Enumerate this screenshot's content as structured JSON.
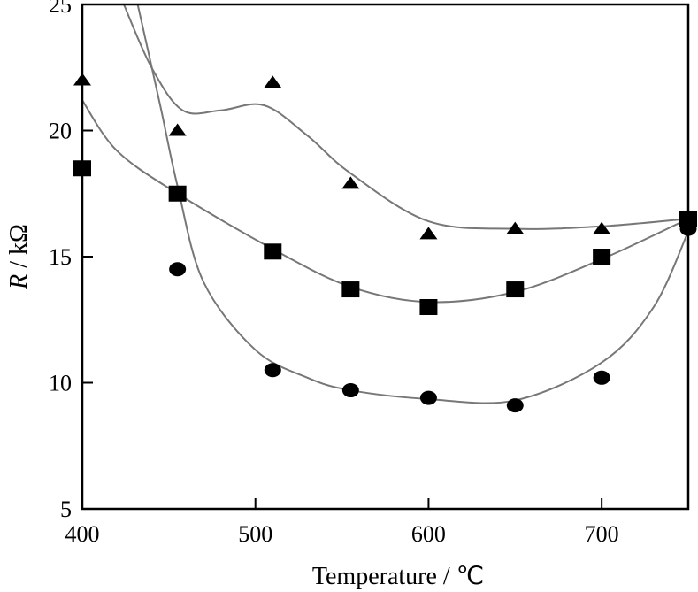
{
  "chart_data": {
    "type": "scatter",
    "title": "",
    "xlabel": "Temperature / ℃",
    "ylabel_italic": "R",
    "ylabel_rest": " / kΩ",
    "xlim": [
      400,
      750
    ],
    "ylim": [
      5,
      25
    ],
    "xticks": [
      400,
      500,
      600,
      700
    ],
    "yticks": [
      5,
      10,
      15,
      20,
      25
    ],
    "grid": false,
    "series": [
      {
        "name": "triangle",
        "marker": "triangle",
        "x": [
          400,
          455,
          510,
          555,
          600,
          650,
          700,
          750
        ],
        "y": [
          22.0,
          20.0,
          21.9,
          17.9,
          15.9,
          16.1,
          16.1,
          16.5
        ],
        "fit": {
          "x": [
            424,
            440,
            458,
            480,
            505,
            530,
            555,
            600,
            650,
            700,
            750
          ],
          "y": [
            25,
            22.5,
            20.8,
            20.8,
            21.0,
            19.8,
            18.3,
            16.4,
            16.1,
            16.2,
            16.5
          ]
        }
      },
      {
        "name": "square",
        "marker": "square",
        "x": [
          400,
          455,
          510,
          555,
          600,
          650,
          700,
          750
        ],
        "y": [
          18.5,
          17.5,
          15.2,
          13.7,
          13.0,
          13.7,
          15.0,
          16.5
        ],
        "fit": {
          "x": [
            400,
            420,
            455,
            510,
            555,
            600,
            650,
            700,
            750
          ],
          "y": [
            21.2,
            19.2,
            17.5,
            15.3,
            13.8,
            13.2,
            13.6,
            14.9,
            16.5
          ]
        }
      },
      {
        "name": "circle",
        "marker": "circle",
        "x": [
          455,
          510,
          555,
          600,
          650,
          700,
          750
        ],
        "y": [
          14.5,
          10.5,
          9.7,
          9.4,
          9.1,
          10.2,
          16.1
        ],
        "fit": {
          "x": [
            432,
            445,
            455,
            470,
            500,
            530,
            555,
            600,
            650,
            700,
            730,
            750
          ],
          "y": [
            25,
            21,
            17.8,
            14,
            11.3,
            10.2,
            9.7,
            9.35,
            9.3,
            10.8,
            13,
            16
          ]
        }
      }
    ]
  }
}
